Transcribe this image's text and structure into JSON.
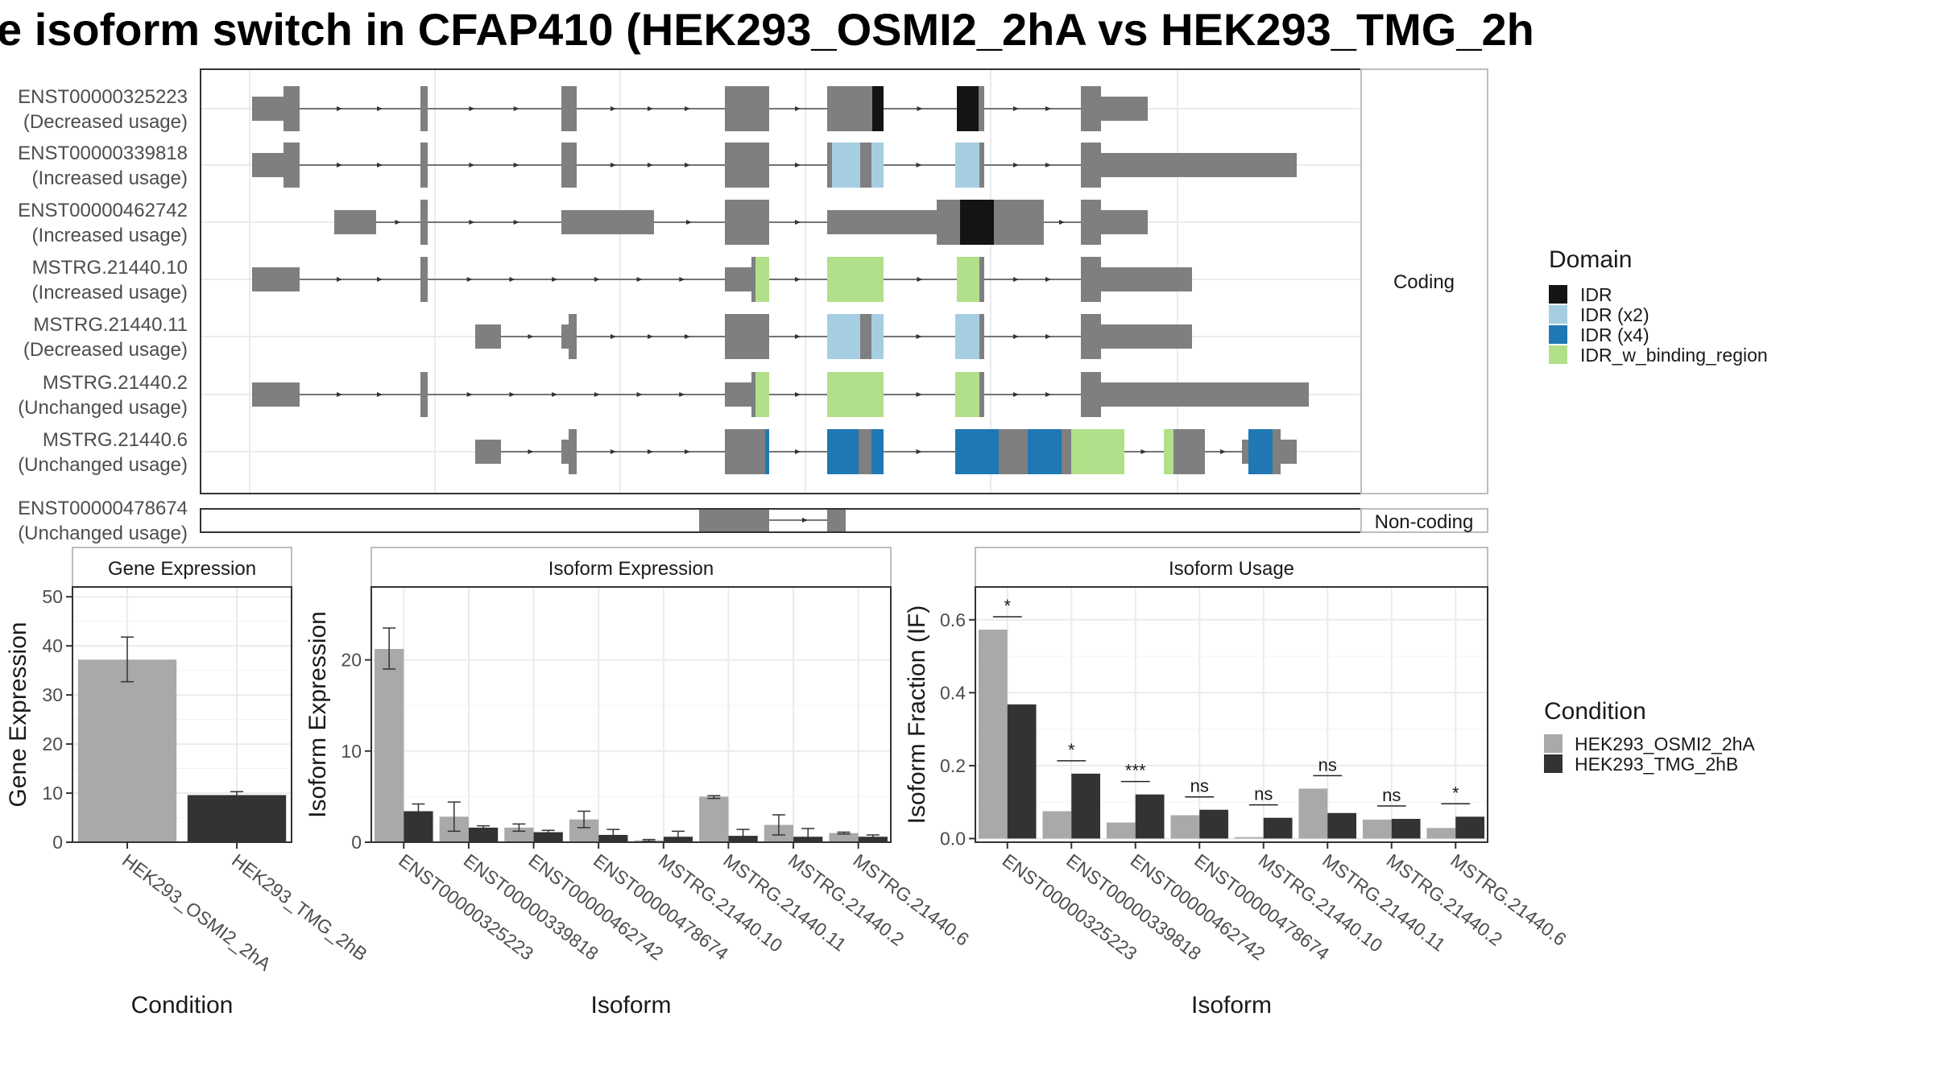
{
  "title": "e isoform switch in CFAP410 (HEK293_OSMI2_2hA vs HEK293_TMG_2h",
  "colors": {
    "exon": "#7f7f7f",
    "IDR": "#141414",
    "IDR (x2)": "#a6cee3",
    "IDR (x4)": "#1f78b4",
    "IDR_w_binding_region": "#b2df8a",
    "cond_a": "#a9a9a9",
    "cond_b": "#333333"
  },
  "structure": {
    "facet_labels": [
      "Coding",
      "Non-coding"
    ],
    "transcripts": [
      {
        "id": "ENST00000325223",
        "usage": "(Decreased usage)",
        "facet": "Coding"
      },
      {
        "id": "ENST00000339818",
        "usage": "(Increased usage)",
        "facet": "Coding"
      },
      {
        "id": "ENST00000462742",
        "usage": "(Increased usage)",
        "facet": "Coding"
      },
      {
        "id": "MSTRG.21440.10",
        "usage": "(Increased usage)",
        "facet": "Coding"
      },
      {
        "id": "MSTRG.21440.11",
        "usage": "(Decreased usage)",
        "facet": "Coding"
      },
      {
        "id": "MSTRG.21440.2",
        "usage": "(Unchanged usage)",
        "facet": "Coding"
      },
      {
        "id": "MSTRG.21440.6",
        "usage": "(Unchanged usage)",
        "facet": "Coding"
      },
      {
        "id": "ENST00000478674",
        "usage": "(Unchanged usage)",
        "facet": "Non-coding"
      }
    ],
    "legend_title": "Domain",
    "domains": [
      "IDR",
      "IDR (x2)",
      "IDR (x4)",
      "IDR_w_binding_region"
    ]
  },
  "condition_legend": {
    "title": "Condition",
    "items": [
      "HEK293_OSMI2_2hA",
      "HEK293_TMG_2hB"
    ]
  },
  "chart_data": [
    {
      "type": "bar",
      "title": "Gene Expression",
      "xlabel": "Condition",
      "ylabel": "Gene Expression",
      "categories": [
        "HEK293_OSMI2_2hA",
        "HEK293_TMG_2hB"
      ],
      "values": [
        37.2,
        9.6
      ],
      "error": [
        [
          32.7,
          41.8
        ],
        [
          9.0,
          10.3
        ]
      ],
      "ylim": [
        0,
        52
      ],
      "yticks": [
        0,
        10,
        20,
        30,
        40,
        50
      ]
    },
    {
      "type": "bar",
      "title": "Isoform Expression",
      "xlabel": "Isoform",
      "ylabel": "Isoform Expression",
      "categories": [
        "ENST00000325223",
        "ENST00000339818",
        "ENST00000462742",
        "ENST00000478674",
        "MSTRG.21440.10",
        "MSTRG.21440.11",
        "MSTRG.21440.2",
        "MSTRG.21440.6"
      ],
      "series": [
        {
          "name": "HEK293_OSMI2_2hA",
          "values": [
            21.2,
            2.8,
            1.6,
            2.5,
            0.2,
            5.0,
            1.9,
            1.0
          ],
          "error": [
            [
              19.0,
              23.5
            ],
            [
              1.2,
              4.4
            ],
            [
              1.2,
              2.0
            ],
            [
              1.6,
              3.4
            ],
            [
              0.1,
              0.3
            ],
            [
              4.8,
              5.1
            ],
            [
              0.8,
              3.0
            ],
            [
              0.9,
              1.1
            ]
          ]
        },
        {
          "name": "HEK293_TMG_2hB",
          "values": [
            3.4,
            1.6,
            1.1,
            0.8,
            0.6,
            0.7,
            0.6,
            0.6
          ],
          "error": [
            [
              2.6,
              4.2
            ],
            [
              1.4,
              1.8
            ],
            [
              0.9,
              1.3
            ],
            [
              0.2,
              1.4
            ],
            [
              0.1,
              1.2
            ],
            [
              0.1,
              1.4
            ],
            [
              0.0,
              1.5
            ],
            [
              0.4,
              0.8
            ]
          ]
        }
      ],
      "ylim": [
        0,
        28
      ],
      "yticks": [
        0,
        10,
        20
      ]
    },
    {
      "type": "bar",
      "title": "Isoform Usage",
      "xlabel": "Isoform",
      "ylabel": "Isoform Fraction (IF)",
      "categories": [
        "ENST00000325223",
        "ENST00000339818",
        "ENST00000462742",
        "ENST00000478674",
        "MSTRG.21440.10",
        "MSTRG.21440.11",
        "MSTRG.21440.2",
        "MSTRG.21440.6"
      ],
      "series": [
        {
          "name": "HEK293_OSMI2_2hA",
          "values": [
            0.573,
            0.075,
            0.044,
            0.064,
            0.004,
            0.137,
            0.052,
            0.029
          ]
        },
        {
          "name": "HEK293_TMG_2hB",
          "values": [
            0.368,
            0.178,
            0.121,
            0.079,
            0.057,
            0.07,
            0.054,
            0.06
          ]
        }
      ],
      "significance": [
        "*",
        "*",
        "***",
        "ns",
        "ns",
        "ns",
        "ns",
        "*"
      ],
      "ylim": [
        -0.01,
        0.69
      ],
      "yticks": [
        0.0,
        0.2,
        0.4,
        0.6
      ],
      "ytick_labels": [
        "0.0",
        "0.2",
        "0.4",
        "0.6"
      ]
    }
  ]
}
